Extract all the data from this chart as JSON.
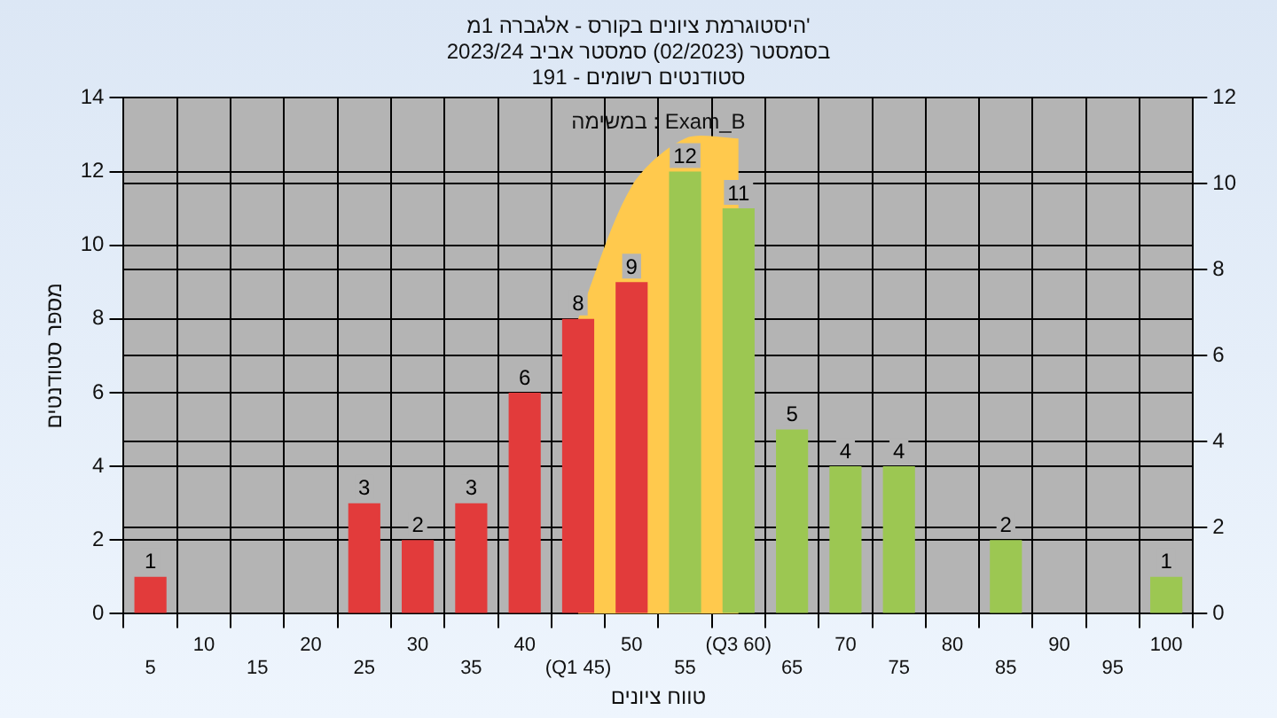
{
  "chart_data": {
    "type": "bar",
    "title": [
      "היסטוגרמת ציונים בקורס - אלגברה 1מ'",
      "בסמסטר (02/2023) סמסטר אביב 2023/24",
      "סטודנטים רשומים - 191"
    ],
    "xlabel": "טווח ציונים",
    "ylabel": "מספר סטודנטים",
    "annotations": [
      "במשימה : Exam_B"
    ],
    "categories": [
      "5",
      "10",
      "15",
      "20",
      "25",
      "30",
      "35",
      "40",
      "(Q1 45)",
      "50",
      "55",
      "(Q3 60)",
      "65",
      "70",
      "75",
      "80",
      "85",
      "90",
      "95",
      "100"
    ],
    "series": [
      {
        "type": "area",
        "color": "#ffc94d",
        "values": [
          null,
          null,
          null,
          null,
          null,
          null,
          null,
          null,
          8,
          11.6,
          12.9,
          12.9,
          null,
          null,
          null,
          null,
          null,
          null,
          null,
          null
        ]
      },
      {
        "values": [
          1,
          0,
          0,
          0,
          3,
          2,
          3,
          6,
          8,
          9,
          12,
          11,
          5,
          4,
          4,
          0,
          2,
          0,
          0,
          1
        ],
        "colors": [
          "#e23b3b",
          "#e23b3b",
          "#e23b3b",
          "#e23b3b",
          "#e23b3b",
          "#e23b3b",
          "#e23b3b",
          "#e23b3b",
          "#e23b3b",
          "#e23b3b",
          "#9cc752",
          "#9cc752",
          "#9cc752",
          "#9cc752",
          "#9cc752",
          "#9cc752",
          "#9cc752",
          "#9cc752",
          "#9cc752",
          "#9cc752"
        ],
        "value_labels": [
          "1",
          null,
          null,
          null,
          "3",
          "2",
          "3",
          "6",
          "8",
          "9",
          "12",
          "11",
          "5",
          "4",
          "4",
          null,
          "2",
          null,
          null,
          "1"
        ]
      }
    ],
    "ylim": [
      0,
      14
    ],
    "yticks": [
      0,
      2,
      4,
      6,
      8,
      10,
      12,
      14
    ],
    "y2lim": [
      0,
      12
    ],
    "y2ticks": [
      0,
      2,
      4,
      6,
      8,
      10,
      12
    ],
    "grid": true,
    "legend": false
  }
}
